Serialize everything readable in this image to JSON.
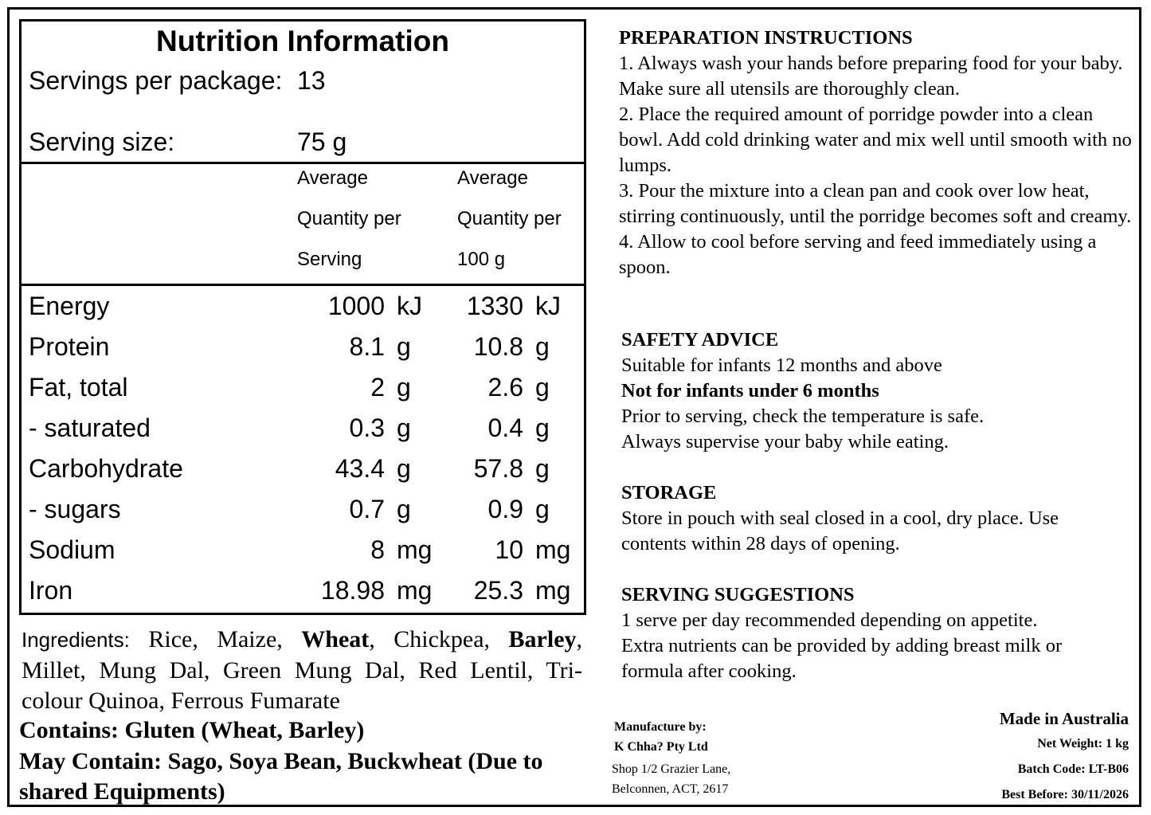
{
  "nutrition": {
    "title": "Nutrition Information",
    "servings_label": "Servings per package:",
    "servings_value": "13",
    "size_label": "Serving size:",
    "size_value": "75 g",
    "col1_head": [
      "Average",
      "Quantity per",
      "Serving"
    ],
    "col2_head": [
      "Average",
      "Quantity per",
      "100 g"
    ],
    "rows": [
      {
        "name": "Energy",
        "v1": "1000",
        "u1": "kJ",
        "v2": "1330",
        "u2": "kJ"
      },
      {
        "name": "Protein",
        "v1": "8.1",
        "u1": "g",
        "v2": "10.8",
        "u2": "g"
      },
      {
        "name": "Fat, total",
        "v1": "2",
        "u1": "g",
        "v2": "2.6",
        "u2": "g"
      },
      {
        "name": "- saturated",
        "v1": "0.3",
        "u1": "g",
        "v2": "0.4",
        "u2": "g"
      },
      {
        "name": "Carbohydrate",
        "v1": "43.4",
        "u1": "g",
        "v2": "57.8",
        "u2": "g"
      },
      {
        "name": "- sugars",
        "v1": "0.7",
        "u1": "g",
        "v2": "0.9",
        "u2": "g"
      },
      {
        "name": "Sodium",
        "v1": "8",
        "u1": "mg",
        "v2": "10",
        "u2": "mg"
      },
      {
        "name": "Iron",
        "v1": "18.98",
        "u1": "mg",
        "v2": "25.3",
        "u2": "mg"
      }
    ]
  },
  "ingredients": {
    "label": "Ingredients:",
    "t1": " Rice, Maize, ",
    "b1": "Wheat",
    "t2": ", Chickpea, ",
    "b2": "Barley",
    "t3": ", Millet, Mung Dal, Green Mung Dal, Red Lentil, Tri-colour Quinoa, Ferrous Fumarate"
  },
  "contains": "Contains: Gluten (Wheat, Barley)",
  "may_contain": "May Contain: Sago, Soya Bean, Buckwheat (Due to shared Equipments)",
  "preparation": {
    "heading": "PREPARATION INSTRUCTIONS",
    "steps": [
      "1. Always wash your hands before preparing food for your baby. Make sure all utensils are thoroughly clean.",
      "2. Place the required amount of porridge powder into a clean bowl. Add cold drinking water and mix well until smooth with no lumps.",
      "3. Pour the mixture into a clean pan and cook over low heat, stirring continuously, until the porridge becomes soft and creamy.",
      "4. Allow to cool before serving and feed immediately using a spoon."
    ]
  },
  "safety": {
    "heading": "SAFETY ADVICE",
    "line1": "Suitable for infants 12 months and above",
    "line2": "Not for infants under 6 months",
    "line3": "Prior to serving, check the temperature is safe.",
    "line4": "Always supervise your baby while eating."
  },
  "storage": {
    "heading": "STORAGE",
    "text": "Store in pouch with seal closed in a cool, dry place. Use contents within 28 days of opening."
  },
  "serving": {
    "heading": "SERVING SUGGESTIONS",
    "line1": "1 serve per day recommended depending on appetite.",
    "line2": "Extra nutrients can be provided by adding breast milk or formula after cooking."
  },
  "manufacturer": {
    "label": "Manufacture by:",
    "name": "K Chha? Pty Ltd",
    "addr1": "Shop 1/2 Grazier Lane,",
    "addr2": "Belconnen, ACT, 2617"
  },
  "made_in": "Made in Australia",
  "net_weight": "Net Weight: 1 kg",
  "batch_code": "Batch Code: LT-B06",
  "best_before": "Best Before: 30/11/2026"
}
